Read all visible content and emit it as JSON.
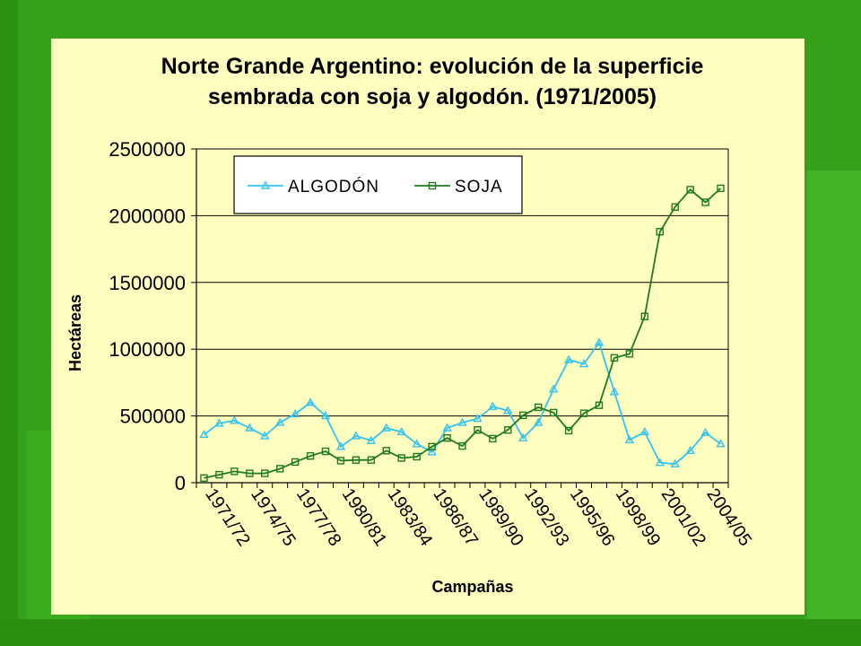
{
  "colors": {
    "panel": "#ffffc0",
    "algodon": "#33c3f0",
    "soja": "#1f7a1f",
    "grid": "#000000"
  },
  "chart_data": {
    "type": "line",
    "title": "Norte Grande Argentino: evolución de la superficie sembrada con soja y algodón. (1971/2005)",
    "title_lines": [
      "Norte Grande Argentino: evolución de la superficie",
      "sembrada con soja y algodón. (1971/2005)"
    ],
    "xlabel": "Campañas",
    "ylabel": "Hectáreas",
    "ylim": [
      0,
      2500000
    ],
    "y_ticks": [
      0,
      500000,
      1000000,
      1500000,
      2000000,
      2500000
    ],
    "y_tick_labels": [
      "0",
      "500000",
      "1000000",
      "1500000",
      "2000000",
      "2500000"
    ],
    "grid": "horizontal",
    "legend_position": "top-left",
    "x_tick_labels": [
      {
        "index": 1,
        "label": "1971/72"
      },
      {
        "index": 4,
        "label": "1974/75"
      },
      {
        "index": 7,
        "label": "1977/78"
      },
      {
        "index": 10,
        "label": "1980/81"
      },
      {
        "index": 13,
        "label": "1983/84"
      },
      {
        "index": 16,
        "label": "1986/87"
      },
      {
        "index": 19,
        "label": "1989/90"
      },
      {
        "index": 22,
        "label": "1992/93"
      },
      {
        "index": 25,
        "label": "1995/96"
      },
      {
        "index": 28,
        "label": "1998/99"
      },
      {
        "index": 31,
        "label": "2001/02"
      },
      {
        "index": 34,
        "label": "2004/05"
      }
    ],
    "series": [
      {
        "name": "ALGODÓN",
        "color": "#33c3f0",
        "marker": "triangle",
        "values": [
          360000,
          445000,
          465000,
          410000,
          350000,
          450000,
          515000,
          600000,
          500000,
          270000,
          350000,
          315000,
          410000,
          380000,
          290000,
          230000,
          410000,
          450000,
          480000,
          570000,
          540000,
          335000,
          450000,
          700000,
          920000,
          890000,
          1050000,
          680000,
          320000,
          380000,
          150000,
          140000,
          240000,
          375000,
          290000
        ]
      },
      {
        "name": "SOJA",
        "color": "#1f7a1f",
        "marker": "square",
        "values": [
          35000,
          60000,
          85000,
          70000,
          70000,
          105000,
          155000,
          200000,
          235000,
          165000,
          170000,
          170000,
          240000,
          185000,
          195000,
          270000,
          335000,
          275000,
          395000,
          330000,
          395000,
          505000,
          565000,
          525000,
          390000,
          520000,
          580000,
          935000,
          965000,
          1245000,
          1880000,
          2065000,
          2195000,
          2100000,
          2205000
        ]
      }
    ]
  }
}
